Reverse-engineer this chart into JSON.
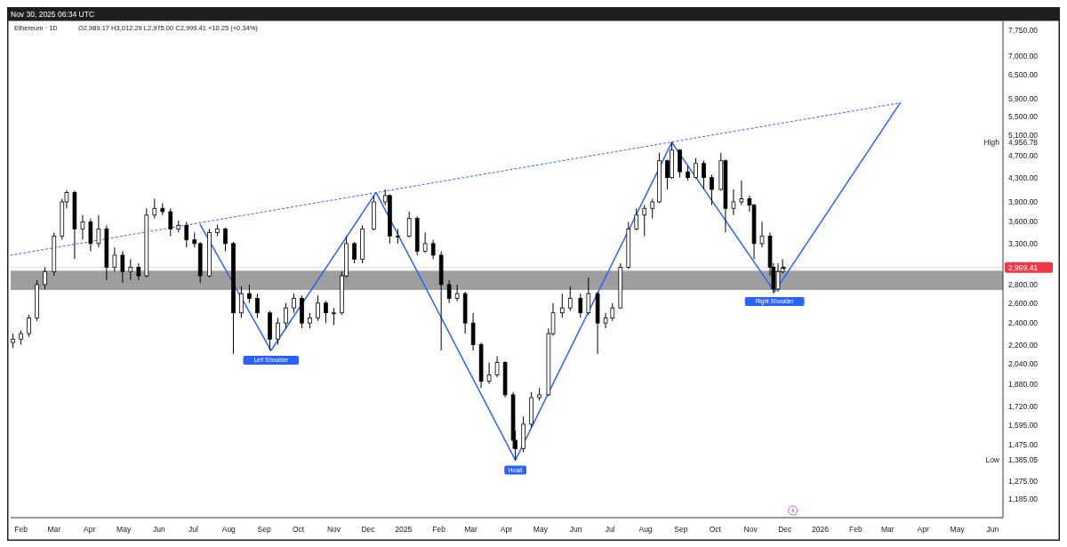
{
  "chart_data": {
    "type": "candlestick",
    "title": "Ethereum · 1D",
    "subtitle": "Nov 30, 2025 06:34 UTC",
    "annotations": [
      "O2,989.17 H3,012.29 L2,975.00 C2,999.41 +10.25 (+0.34%)",
      {
        "text": "Left Shoulder",
        "x": "2024-09-07",
        "y": 2150
      },
      {
        "text": "Head",
        "x": "2025-04-09",
        "y": 1385
      },
      {
        "text": "Right Shoulder",
        "x": "2025-11-22",
        "y": 2720
      },
      "High",
      "Low"
    ],
    "x": [
      "2024-01-25",
      "2024-02-01",
      "2024-02-08",
      "2024-02-15",
      "2024-02-22",
      "2024-03-01",
      "2024-03-08",
      "2024-03-12",
      "2024-03-19",
      "2024-03-26",
      "2024-04-02",
      "2024-04-09",
      "2024-04-16",
      "2024-04-23",
      "2024-04-30",
      "2024-05-07",
      "2024-05-14",
      "2024-05-21",
      "2024-05-28",
      "2024-06-04",
      "2024-06-11",
      "2024-06-18",
      "2024-06-25",
      "2024-07-02",
      "2024-07-07",
      "2024-07-15",
      "2024-07-22",
      "2024-07-29",
      "2024-08-05",
      "2024-08-12",
      "2024-08-19",
      "2024-08-26",
      "2024-09-06",
      "2024-09-13",
      "2024-09-20",
      "2024-09-27",
      "2024-10-04",
      "2024-10-11",
      "2024-10-18",
      "2024-10-25",
      "2024-11-01",
      "2024-11-08",
      "2024-11-12",
      "2024-11-19",
      "2024-11-26",
      "2024-12-06",
      "2024-12-16",
      "2024-12-20",
      "2024-12-27",
      "2025-01-06",
      "2025-01-13",
      "2025-01-20",
      "2025-01-27",
      "2025-02-03",
      "2025-02-10",
      "2025-02-17",
      "2025-02-24",
      "2025-03-03",
      "2025-03-10",
      "2025-03-17",
      "2025-03-24",
      "2025-03-31",
      "2025-04-07",
      "2025-04-09",
      "2025-04-16",
      "2025-04-23",
      "2025-04-30",
      "2025-05-08",
      "2025-05-12",
      "2025-05-20",
      "2025-05-27",
      "2025-06-05",
      "2025-06-12",
      "2025-06-20",
      "2025-06-27",
      "2025-07-03",
      "2025-07-10",
      "2025-07-17",
      "2025-07-24",
      "2025-07-31",
      "2025-08-07",
      "2025-08-13",
      "2025-08-20",
      "2025-08-24",
      "2025-08-31",
      "2025-09-07",
      "2025-09-14",
      "2025-09-21",
      "2025-09-28",
      "2025-10-06",
      "2025-10-10",
      "2025-10-17",
      "2025-10-24",
      "2025-10-31",
      "2025-11-04",
      "2025-11-11",
      "2025-11-18",
      "2025-11-21",
      "2025-11-25",
      "2025-11-29",
      "2025-11-30"
    ],
    "ohlc": [
      [
        2220,
        2300,
        2170,
        2250
      ],
      [
        2250,
        2330,
        2200,
        2300
      ],
      [
        2300,
        2480,
        2270,
        2450
      ],
      [
        2450,
        2850,
        2420,
        2800
      ],
      [
        2800,
        3000,
        2750,
        2950
      ],
      [
        2950,
        3450,
        2900,
        3400
      ],
      [
        3400,
        3950,
        3350,
        3900
      ],
      [
        3900,
        4090,
        3800,
        4050
      ],
      [
        4050,
        4080,
        3100,
        3500
      ],
      [
        3500,
        3700,
        3350,
        3600
      ],
      [
        3600,
        3650,
        3200,
        3300
      ],
      [
        3300,
        3700,
        3250,
        3500
      ],
      [
        3500,
        3550,
        2850,
        3000
      ],
      [
        3000,
        3250,
        2950,
        3150
      ],
      [
        3150,
        3200,
        2820,
        2950
      ],
      [
        2950,
        3100,
        2850,
        3000
      ],
      [
        3000,
        3050,
        2850,
        2900
      ],
      [
        2900,
        3800,
        2880,
        3700
      ],
      [
        3700,
        3950,
        3650,
        3800
      ],
      [
        3800,
        3880,
        3700,
        3750
      ],
      [
        3750,
        3800,
        3400,
        3500
      ],
      [
        3500,
        3620,
        3450,
        3550
      ],
      [
        3550,
        3600,
        3250,
        3350
      ],
      [
        3350,
        3450,
        3250,
        3300
      ],
      [
        3300,
        3320,
        2820,
        2900
      ],
      [
        2900,
        3500,
        2880,
        3450
      ],
      [
        3450,
        3560,
        3400,
        3500
      ],
      [
        3500,
        3520,
        3200,
        3300
      ],
      [
        3300,
        3320,
        2120,
        2500
      ],
      [
        2500,
        2780,
        2450,
        2700
      ],
      [
        2700,
        2800,
        2600,
        2650
      ],
      [
        2650,
        2700,
        2450,
        2500
      ],
      [
        2500,
        2520,
        2150,
        2250
      ],
      [
        2250,
        2450,
        2200,
        2400
      ],
      [
        2400,
        2600,
        2350,
        2550
      ],
      [
        2550,
        2700,
        2500,
        2650
      ],
      [
        2650,
        2680,
        2350,
        2400
      ],
      [
        2400,
        2500,
        2350,
        2450
      ],
      [
        2450,
        2680,
        2420,
        2600
      ],
      [
        2600,
        2620,
        2400,
        2500
      ],
      [
        2500,
        2550,
        2380,
        2500
      ],
      [
        2500,
        2950,
        2480,
        2900
      ],
      [
        2900,
        3400,
        2880,
        3300
      ],
      [
        3300,
        3320,
        3050,
        3100
      ],
      [
        3100,
        3550,
        3050,
        3500
      ],
      [
        3500,
        4000,
        3480,
        3900
      ],
      [
        3900,
        4100,
        3850,
        4000
      ],
      [
        4000,
        4020,
        3300,
        3400
      ],
      [
        3400,
        3500,
        3300,
        3400
      ],
      [
        3400,
        3750,
        3380,
        3650
      ],
      [
        3650,
        3680,
        3150,
        3200
      ],
      [
        3200,
        3450,
        3180,
        3300
      ],
      [
        3300,
        3350,
        3100,
        3150
      ],
      [
        3150,
        3200,
        2150,
        2800
      ],
      [
        2800,
        2850,
        2600,
        2650
      ],
      [
        2650,
        2800,
        2620,
        2700
      ],
      [
        2700,
        2720,
        2300,
        2400
      ],
      [
        2400,
        2500,
        2150,
        2200
      ],
      [
        2200,
        2220,
        1850,
        1900
      ],
      [
        1900,
        2050,
        1880,
        1950
      ],
      [
        1950,
        2100,
        1930,
        2050
      ],
      [
        2050,
        2060,
        1780,
        1800
      ],
      [
        1800,
        1820,
        1450,
        1500
      ],
      [
        1500,
        1560,
        1385.05,
        1450
      ],
      [
        1450,
        1650,
        1430,
        1600
      ],
      [
        1600,
        1820,
        1580,
        1780
      ],
      [
        1780,
        1850,
        1760,
        1800
      ],
      [
        1800,
        2350,
        1790,
        2300
      ],
      [
        2300,
        2600,
        2280,
        2500
      ],
      [
        2500,
        2700,
        2450,
        2550
      ],
      [
        2550,
        2780,
        2520,
        2650
      ],
      [
        2650,
        2700,
        2450,
        2500
      ],
      [
        2500,
        2880,
        2480,
        2700
      ],
      [
        2700,
        2720,
        2120,
        2400
      ],
      [
        2400,
        2500,
        2350,
        2450
      ],
      [
        2450,
        2600,
        2420,
        2550
      ],
      [
        2550,
        3050,
        2540,
        3000
      ],
      [
        3000,
        3600,
        2980,
        3500
      ],
      [
        3500,
        3800,
        3480,
        3700
      ],
      [
        3700,
        3850,
        3400,
        3800
      ],
      [
        3800,
        3950,
        3650,
        3900
      ],
      [
        3900,
        4750,
        3880,
        4600
      ],
      [
        4600,
        4620,
        4100,
        4300
      ],
      [
        4300,
        4956.78,
        4280,
        4800
      ],
      [
        4800,
        4820,
        4300,
        4400
      ],
      [
        4400,
        4500,
        4250,
        4300
      ],
      [
        4300,
        4650,
        4280,
        4550
      ],
      [
        4550,
        4600,
        4100,
        4300
      ],
      [
        4300,
        4350,
        3850,
        4100
      ],
      [
        4100,
        4750,
        4080,
        4600
      ],
      [
        4600,
        4620,
        3450,
        3800
      ],
      [
        3800,
        4100,
        3700,
        3900
      ],
      [
        3900,
        4250,
        3850,
        3950
      ],
      [
        3950,
        4000,
        3750,
        3850
      ],
      [
        3850,
        3870,
        3100,
        3300
      ],
      [
        3300,
        3600,
        3250,
        3400
      ],
      [
        3400,
        3450,
        2900,
        3000
      ],
      [
        3000,
        3050,
        2700,
        2750
      ],
      [
        2750,
        3050,
        2720,
        2950
      ],
      [
        2950,
        3100,
        2930,
        2989.17
      ],
      [
        2989.17,
        3012.29,
        2975,
        2999.41
      ]
    ],
    "series": [
      {
        "type": "line",
        "color": "#2962ff",
        "line_style": "solid",
        "x": [
          "2024-07-07",
          "2024-09-07",
          "2024-12-08",
          "2025-04-09",
          "2025-08-24",
          "2025-11-22",
          "2026-03-12"
        ],
        "values": [
          3560,
          2150,
          4050,
          1385,
          4950,
          2720,
          5800
        ]
      },
      {
        "type": "line",
        "color": "#2962ff",
        "line_style": "dotted",
        "x": [
          "2024-01-23",
          "2026-03-12"
        ],
        "values": [
          3150,
          5800
        ]
      }
    ],
    "bands": [
      {
        "axis": "y",
        "from": 2740,
        "to": 2960,
        "color": "#9e9e9e"
      }
    ],
    "ref_lines": [
      {
        "axis": "y",
        "value": 2999.41,
        "label": "2,999.41",
        "color": "#f23645"
      }
    ],
    "log": "y",
    "grid": false,
    "xlim": [
      "2024-01-23",
      "2026-06-10"
    ],
    "xticks": [
      {
        "value": "2024-02-01",
        "label": "Feb"
      },
      {
        "value": "2024-03-01",
        "label": "Mar"
      },
      {
        "value": "2024-04-01",
        "label": "Apr"
      },
      {
        "value": "2024-05-01",
        "label": "May"
      },
      {
        "value": "2024-06-01",
        "label": "Jun"
      },
      {
        "value": "2024-07-01",
        "label": "Jul"
      },
      {
        "value": "2024-08-01",
        "label": "Aug"
      },
      {
        "value": "2024-09-01",
        "label": "Sep"
      },
      {
        "value": "2024-10-01",
        "label": "Oct"
      },
      {
        "value": "2024-11-01",
        "label": "Nov"
      },
      {
        "value": "2024-12-01",
        "label": "Dec"
      },
      {
        "value": "2025-01-01",
        "label": "2025"
      },
      {
        "value": "2025-02-01",
        "label": "Feb"
      },
      {
        "value": "2025-03-01",
        "label": "Mar"
      },
      {
        "value": "2025-04-01",
        "label": "Apr"
      },
      {
        "value": "2025-05-01",
        "label": "May"
      },
      {
        "value": "2025-06-01",
        "label": "Jun"
      },
      {
        "value": "2025-07-01",
        "label": "Jul"
      },
      {
        "value": "2025-08-01",
        "label": "Aug"
      },
      {
        "value": "2025-09-01",
        "label": "Sep"
      },
      {
        "value": "2025-10-01",
        "label": "Oct"
      },
      {
        "value": "2025-11-01",
        "label": "Nov"
      },
      {
        "value": "2025-12-01",
        "label": "Dec"
      },
      {
        "value": "2026-01-01",
        "label": "2026"
      },
      {
        "value": "2026-02-01",
        "label": "Feb"
      },
      {
        "value": "2026-03-01",
        "label": "Mar"
      },
      {
        "value": "2026-04-01",
        "label": "Apr"
      },
      {
        "value": "2026-05-01",
        "label": "May"
      },
      {
        "value": "2026-06-01",
        "label": "Jun"
      }
    ],
    "ylim": [
      1100,
      8100
    ],
    "yticks": [
      {
        "value": 1185,
        "label": "1,185.00"
      },
      {
        "value": 1275,
        "label": "1,275.00"
      },
      {
        "value": 1385.05,
        "label": "1,385.05"
      },
      {
        "value": 1475,
        "label": "1,475.00"
      },
      {
        "value": 1595,
        "label": "1,595.00"
      },
      {
        "value": 1720,
        "label": "1,720.00"
      },
      {
        "value": 1880,
        "label": "1,880.00"
      },
      {
        "value": 2040,
        "label": "2,040.00"
      },
      {
        "value": 2200,
        "label": "2,200.00"
      },
      {
        "value": 2400,
        "label": "2,400.00"
      },
      {
        "value": 2600,
        "label": "2,600.00"
      },
      {
        "value": 2800,
        "label": "2,800.00"
      },
      {
        "value": 3300,
        "label": "3,300.00"
      },
      {
        "value": 3600,
        "label": "3,600.00"
      },
      {
        "value": 3900,
        "label": "3,900.00"
      },
      {
        "value": 4300,
        "label": "4,300.00"
      },
      {
        "value": 4700,
        "label": "4,700.00"
      },
      {
        "value": 4956.78,
        "label": "4,956.78"
      },
      {
        "value": 5100,
        "label": "5,100.00"
      },
      {
        "value": 5500,
        "label": "5,500.00"
      },
      {
        "value": 5900,
        "label": "5,900.00"
      },
      {
        "value": 6500,
        "label": "6,500.00"
      },
      {
        "value": 7000,
        "label": "7,000.00"
      },
      {
        "value": 7750,
        "label": "7,750.00"
      }
    ]
  }
}
